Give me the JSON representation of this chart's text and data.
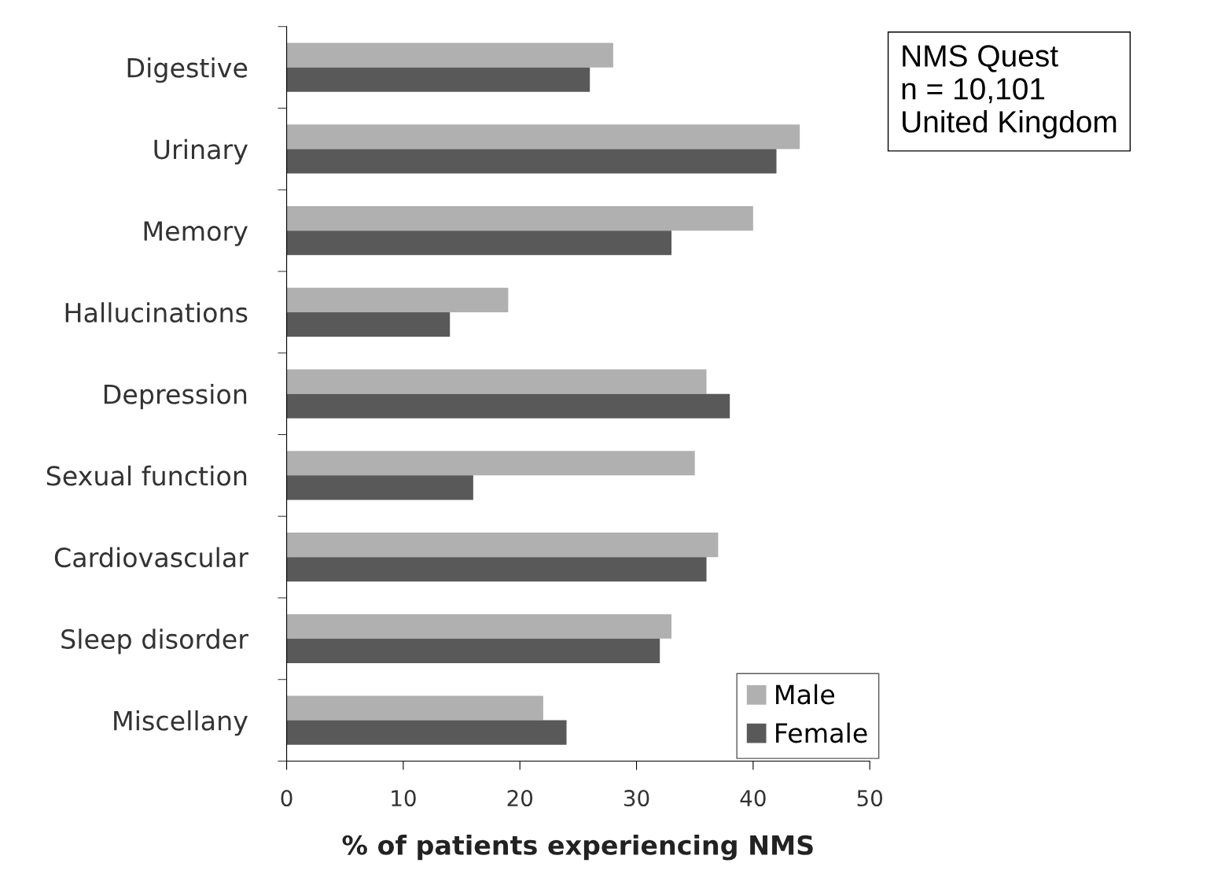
{
  "chart_data": {
    "type": "bar",
    "orientation": "horizontal",
    "xlabel": "% of patients experiencing NMS",
    "categories": [
      "Digestive",
      "Urinary",
      "Memory",
      "Hallucinations",
      "Depression",
      "Sexual function",
      "Cardiovascular",
      "Sleep disorder",
      "Miscellany"
    ],
    "series": [
      {
        "name": "Male",
        "color": "#b0b0b0",
        "values": [
          28,
          44,
          40,
          19,
          36,
          35,
          37,
          33,
          22
        ]
      },
      {
        "name": "Female",
        "color": "#595959",
        "values": [
          26,
          42,
          33,
          14,
          38,
          16,
          36,
          32,
          24
        ]
      }
    ],
    "xlim": [
      0,
      50
    ],
    "xticks": [
      0,
      10,
      20,
      30,
      40,
      50
    ],
    "grid": false,
    "legend": "bottom right",
    "annotations": [
      "NMS Quest\nn = 10,101\nUnited Kingdom"
    ]
  }
}
